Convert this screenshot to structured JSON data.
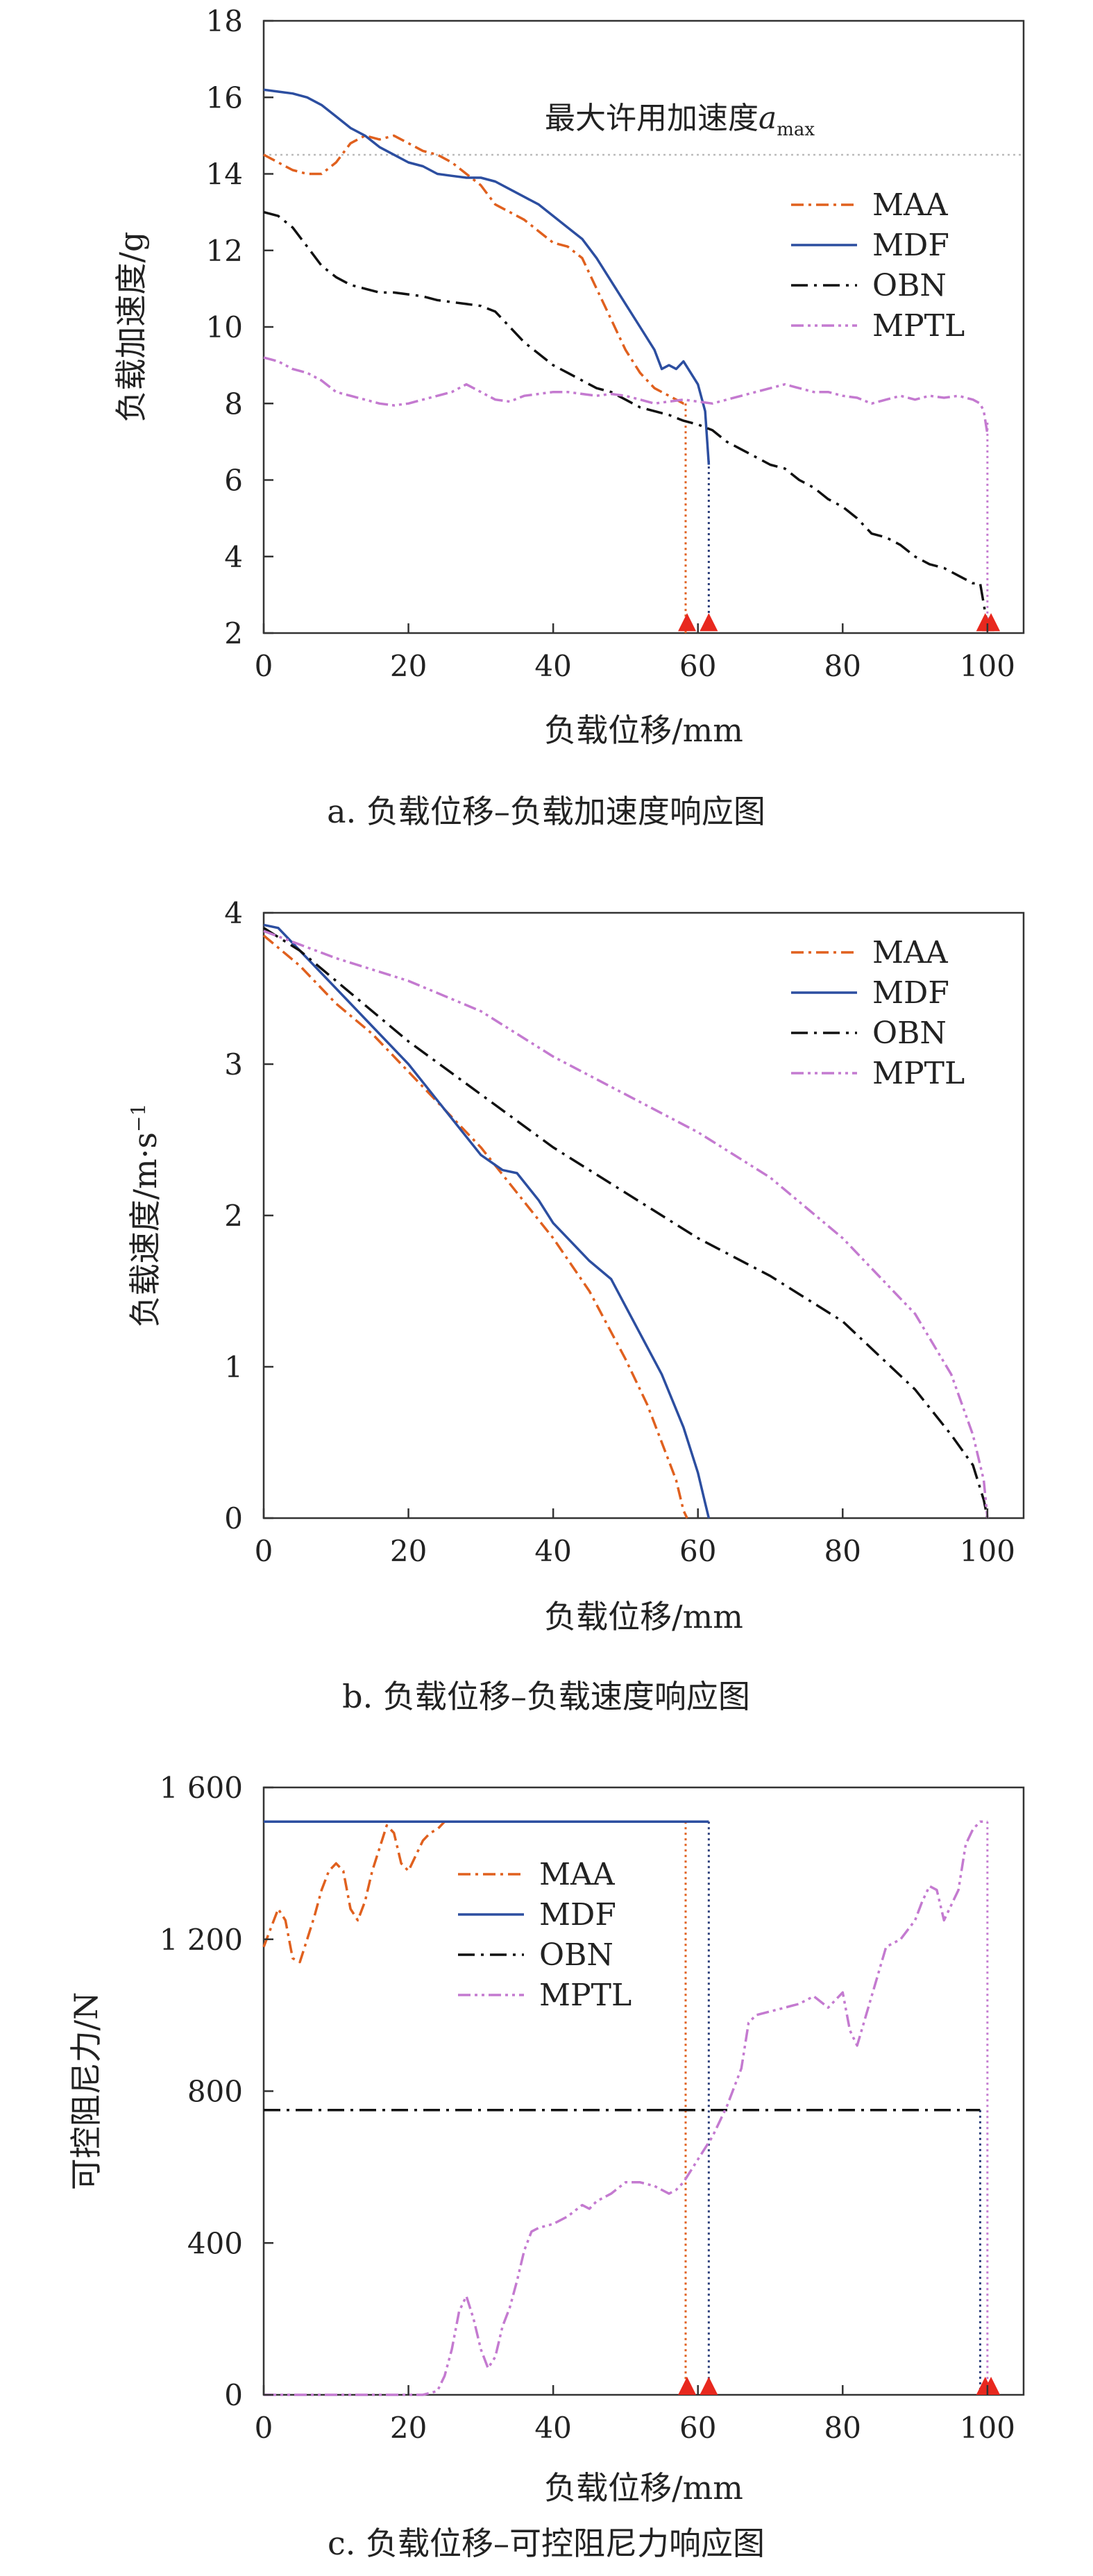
{
  "chart_data": [
    {
      "type": "line",
      "caption": "a. 负载位移–负载加速度响应图",
      "xlabel": "负载位移/mm",
      "ylabel": "负载加速度/g",
      "xlim": [
        0,
        105
      ],
      "ylim": [
        2,
        18
      ],
      "xticks": [
        0,
        20,
        40,
        60,
        80,
        100
      ],
      "yticks": [
        2,
        4,
        6,
        8,
        10,
        12,
        14,
        16,
        18
      ],
      "grid": false,
      "legend_position": "right",
      "annotation": {
        "text": "最大许用加速度",
        "symbol": "a",
        "subscript": "max"
      },
      "reference_lines": [
        {
          "kind": "horizontal",
          "y": 14.5,
          "color": "#bbbbbb"
        }
      ],
      "end_markers": [
        {
          "x": 58.5,
          "y": 2.05,
          "color": "#e8281e"
        },
        {
          "x": 61.5,
          "y": 2.05,
          "color": "#e8281e"
        },
        {
          "x": 99.7,
          "y": 2.05,
          "color": "#e8281e"
        },
        {
          "x": 100.5,
          "y": 2.05,
          "color": "#e8281e"
        }
      ],
      "drop_lines": [
        {
          "x": 58.3,
          "y_from": 8.0,
          "y_to": 2,
          "color": "#e0601e"
        },
        {
          "x": 61.5,
          "y_from": 6.5,
          "y_to": 2,
          "color": "#2c3e7a"
        },
        {
          "x": 100.0,
          "y_from": 7.5,
          "y_to": 2,
          "color": "#c47ad0"
        }
      ],
      "series": [
        {
          "name": "MAA",
          "color": "#e0601e",
          "dash": "18 7 4 7",
          "x": [
            0,
            2,
            4,
            6,
            8,
            10,
            12,
            14,
            16,
            18,
            20,
            22,
            24,
            26,
            28,
            30,
            32,
            34,
            36,
            38,
            40,
            42,
            44,
            46,
            48,
            50,
            52,
            54,
            56,
            58,
            58.3
          ],
          "y": [
            14.5,
            14.3,
            14.1,
            14.0,
            14.0,
            14.3,
            14.8,
            15.0,
            14.9,
            15.0,
            14.8,
            14.6,
            14.5,
            14.3,
            14.0,
            13.7,
            13.2,
            13.0,
            12.8,
            12.5,
            12.2,
            12.1,
            11.8,
            11.0,
            10.2,
            9.4,
            8.8,
            8.4,
            8.2,
            8.0,
            8.0
          ]
        },
        {
          "name": "MDF",
          "color": "#2c4ea0",
          "dash": "",
          "x": [
            0,
            2,
            4,
            6,
            8,
            10,
            12,
            14,
            16,
            18,
            20,
            22,
            24,
            26,
            28,
            30,
            32,
            34,
            36,
            38,
            40,
            42,
            44,
            46,
            48,
            50,
            52,
            54,
            55,
            56,
            57,
            58,
            59,
            60,
            61,
            61.5
          ],
          "y": [
            16.2,
            16.15,
            16.1,
            16.0,
            15.8,
            15.5,
            15.2,
            15.0,
            14.7,
            14.5,
            14.3,
            14.2,
            14.0,
            13.95,
            13.9,
            13.9,
            13.8,
            13.6,
            13.4,
            13.2,
            12.9,
            12.6,
            12.3,
            11.8,
            11.2,
            10.6,
            10.0,
            9.4,
            8.9,
            9.0,
            8.9,
            9.1,
            8.8,
            8.5,
            7.8,
            6.4
          ]
        },
        {
          "name": "OBN",
          "color": "#111111",
          "dash": "24 9 4 9",
          "x": [
            0,
            2,
            4,
            6,
            8,
            10,
            12,
            14,
            16,
            18,
            20,
            22,
            24,
            26,
            28,
            30,
            32,
            34,
            36,
            38,
            40,
            42,
            44,
            46,
            48,
            50,
            52,
            54,
            56,
            58,
            60,
            62,
            64,
            66,
            68,
            70,
            72,
            74,
            76,
            78,
            80,
            82,
            84,
            86,
            88,
            90,
            92,
            94,
            96,
            98,
            99,
            100
          ],
          "y": [
            13.0,
            12.9,
            12.6,
            12.1,
            11.6,
            11.3,
            11.1,
            11.0,
            10.9,
            10.9,
            10.85,
            10.8,
            10.7,
            10.65,
            10.6,
            10.55,
            10.4,
            10.0,
            9.6,
            9.3,
            9.0,
            8.8,
            8.6,
            8.4,
            8.3,
            8.1,
            7.9,
            7.8,
            7.7,
            7.55,
            7.45,
            7.3,
            7.0,
            6.8,
            6.6,
            6.4,
            6.3,
            6.0,
            5.8,
            5.5,
            5.3,
            5.0,
            4.6,
            4.5,
            4.3,
            4.0,
            3.8,
            3.7,
            3.5,
            3.3,
            3.3,
            2.2
          ]
        },
        {
          "name": "MPTL",
          "color": "#c47ad0",
          "dash": "18 6 4 6 4 6",
          "x": [
            0,
            2,
            4,
            6,
            8,
            10,
            12,
            14,
            16,
            18,
            20,
            22,
            24,
            26,
            28,
            30,
            32,
            34,
            36,
            38,
            40,
            42,
            44,
            46,
            48,
            50,
            52,
            54,
            56,
            58,
            60,
            62,
            64,
            66,
            68,
            70,
            72,
            74,
            76,
            78,
            80,
            82,
            84,
            86,
            88,
            90,
            92,
            94,
            96,
            98,
            99,
            99.5,
            100
          ],
          "y": [
            9.2,
            9.1,
            8.9,
            8.8,
            8.6,
            8.3,
            8.2,
            8.1,
            8.0,
            7.95,
            8.0,
            8.1,
            8.2,
            8.3,
            8.5,
            8.3,
            8.1,
            8.05,
            8.2,
            8.25,
            8.3,
            8.3,
            8.25,
            8.2,
            8.25,
            8.2,
            8.1,
            8.0,
            8.05,
            8.1,
            8.05,
            8.0,
            8.1,
            8.2,
            8.3,
            8.4,
            8.5,
            8.4,
            8.3,
            8.3,
            8.2,
            8.15,
            8.0,
            8.1,
            8.2,
            8.1,
            8.2,
            8.15,
            8.2,
            8.1,
            8.0,
            7.8,
            7.2
          ]
        }
      ]
    },
    {
      "type": "line",
      "caption": "b. 负载位移–负载速度响应图",
      "xlabel": "负载位移/mm",
      "ylabel": "负载速度/m·s",
      "ylabel_sup": "−1",
      "xlim": [
        0,
        105
      ],
      "ylim": [
        0,
        4
      ],
      "xticks": [
        0,
        20,
        40,
        60,
        80,
        100
      ],
      "yticks": [
        0,
        1,
        2,
        3,
        4
      ],
      "grid": false,
      "legend_position": "top-right",
      "series": [
        {
          "name": "MAA",
          "color": "#e0601e",
          "dash": "18 7 4 7",
          "x": [
            0,
            5,
            10,
            15,
            20,
            25,
            30,
            35,
            40,
            45,
            50,
            53,
            55,
            57,
            58,
            58.5
          ],
          "y": [
            3.85,
            3.65,
            3.4,
            3.2,
            2.95,
            2.7,
            2.45,
            2.15,
            1.85,
            1.5,
            1.05,
            0.75,
            0.5,
            0.25,
            0.05,
            0.0
          ]
        },
        {
          "name": "MDF",
          "color": "#2c4ea0",
          "dash": "",
          "x": [
            0,
            2,
            5,
            10,
            15,
            20,
            25,
            30,
            33,
            35,
            38,
            40,
            45,
            48,
            50,
            55,
            58,
            60,
            61,
            61.5
          ],
          "y": [
            3.92,
            3.9,
            3.75,
            3.5,
            3.25,
            3.0,
            2.7,
            2.4,
            2.3,
            2.28,
            2.1,
            1.95,
            1.7,
            1.58,
            1.4,
            0.95,
            0.6,
            0.3,
            0.1,
            0.0
          ]
        },
        {
          "name": "OBN",
          "color": "#111111",
          "dash": "24 9 4 9",
          "x": [
            0,
            5,
            10,
            20,
            30,
            40,
            50,
            60,
            70,
            80,
            90,
            95,
            98,
            99.5,
            100
          ],
          "y": [
            3.9,
            3.75,
            3.55,
            3.15,
            2.8,
            2.45,
            2.15,
            1.85,
            1.6,
            1.3,
            0.85,
            0.55,
            0.35,
            0.12,
            0.0
          ]
        },
        {
          "name": "MPTL",
          "color": "#c47ad0",
          "dash": "18 6 4 6 4 6",
          "x": [
            0,
            10,
            20,
            30,
            40,
            50,
            60,
            70,
            80,
            90,
            95,
            98,
            99.5,
            100
          ],
          "y": [
            3.88,
            3.7,
            3.55,
            3.35,
            3.05,
            2.8,
            2.55,
            2.25,
            1.85,
            1.35,
            0.95,
            0.55,
            0.25,
            0.0
          ]
        }
      ]
    },
    {
      "type": "line",
      "caption": "c. 负载位移–可控阻尼力响应图",
      "xlabel": "负载位移/mm",
      "ylabel": "可控阻尼力/N",
      "xlim": [
        0,
        105
      ],
      "ylim": [
        0,
        1600
      ],
      "xticks": [
        0,
        20,
        40,
        60,
        80,
        100
      ],
      "yticks": [
        0,
        400,
        800,
        1200,
        1600
      ],
      "ytick_labels": [
        "0",
        "400",
        "800",
        "1 200",
        "1 600"
      ],
      "grid": false,
      "legend_position": "top-center",
      "end_markers": [
        {
          "x": 58.5,
          "y": 0,
          "color": "#e8281e"
        },
        {
          "x": 61.5,
          "y": 0,
          "color": "#e8281e"
        },
        {
          "x": 99.7,
          "y": 0,
          "color": "#e8281e"
        },
        {
          "x": 100.5,
          "y": 0,
          "color": "#e8281e"
        }
      ],
      "drop_lines": [
        {
          "x": 58.3,
          "y_from": 1510,
          "y_to": 0,
          "color": "#e0601e"
        },
        {
          "x": 61.5,
          "y_from": 1510,
          "y_to": 0,
          "color": "#2c3e7a"
        },
        {
          "x": 99.0,
          "y_from": 750,
          "y_to": 0,
          "color": "#2c3e7a"
        },
        {
          "x": 100.0,
          "y_from": 1510,
          "y_to": 0,
          "color": "#c47ad0"
        }
      ],
      "series": [
        {
          "name": "MAA",
          "color": "#e0601e",
          "dash": "18 7 4 7",
          "x": [
            0,
            1,
            2,
            3,
            4,
            5,
            6,
            7,
            8,
            9,
            10,
            11,
            12,
            13,
            14,
            15,
            16,
            17,
            18,
            19,
            20,
            21,
            22,
            23,
            24,
            25
          ],
          "y": [
            1180,
            1230,
            1280,
            1250,
            1150,
            1140,
            1200,
            1260,
            1330,
            1380,
            1400,
            1380,
            1280,
            1250,
            1300,
            1380,
            1440,
            1500,
            1480,
            1400,
            1380,
            1420,
            1460,
            1480,
            1490,
            1510
          ]
        },
        {
          "name": "MDF",
          "color": "#2c4ea0",
          "dash": "",
          "x": [
            0,
            61.5
          ],
          "y": [
            1510,
            1510
          ]
        },
        {
          "name": "OBN",
          "color": "#111111",
          "dash": "24 9 4 9",
          "x": [
            0,
            99.0
          ],
          "y": [
            750,
            750
          ]
        },
        {
          "name": "MPTL",
          "color": "#c47ad0",
          "dash": "18 6 4 6 4 6",
          "x": [
            0,
            20,
            22,
            24,
            25,
            26,
            27,
            28,
            29,
            30,
            31,
            32,
            33,
            34,
            35,
            36,
            37,
            38,
            40,
            42,
            44,
            45,
            46,
            48,
            50,
            52,
            54,
            56,
            57,
            58,
            60,
            62,
            64,
            66,
            67,
            68,
            70,
            72,
            74,
            76,
            78,
            80,
            81,
            82,
            84,
            86,
            88,
            90,
            91,
            92,
            93,
            94,
            96,
            97,
            98,
            99,
            100
          ],
          "y": [
            0,
            0,
            0,
            10,
            50,
            120,
            220,
            260,
            200,
            120,
            70,
            100,
            180,
            230,
            300,
            380,
            430,
            440,
            450,
            470,
            500,
            490,
            510,
            530,
            560,
            560,
            550,
            530,
            540,
            560,
            620,
            680,
            760,
            860,
            980,
            1000,
            1010,
            1020,
            1030,
            1050,
            1020,
            1060,
            960,
            920,
            1050,
            1180,
            1200,
            1250,
            1300,
            1340,
            1330,
            1250,
            1330,
            1450,
            1490,
            1510,
            1510
          ]
        }
      ]
    }
  ]
}
